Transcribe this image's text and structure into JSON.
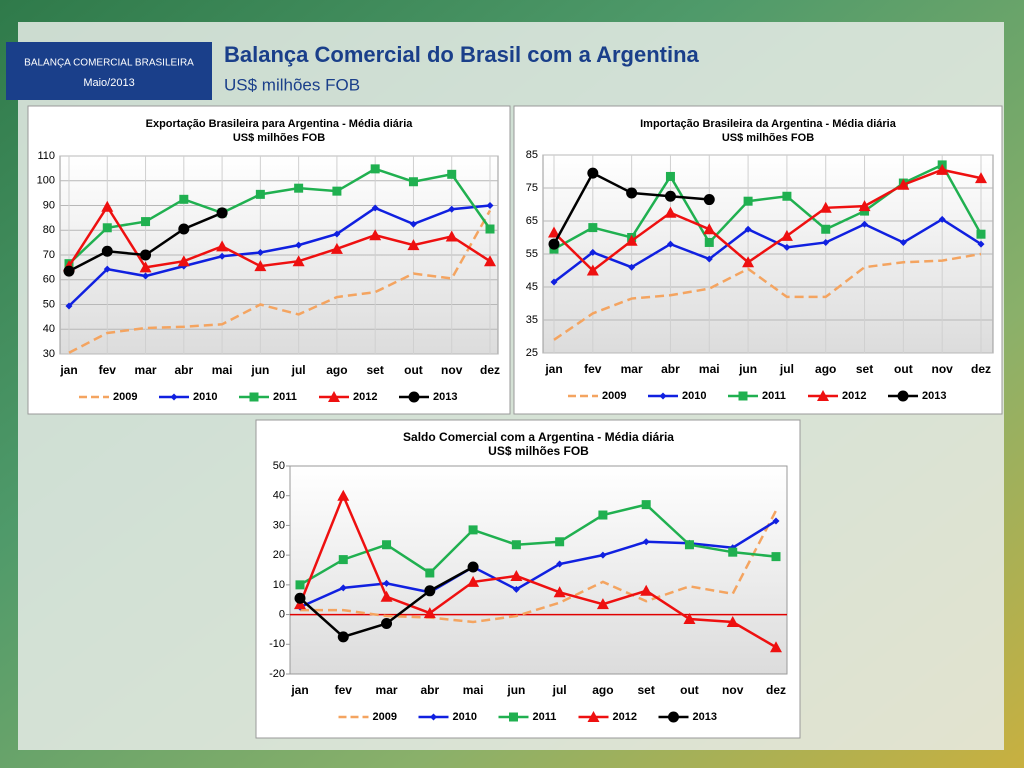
{
  "header": {
    "badge": "BALANÇA COMERCIAL BRASILEIRA",
    "date": "Maio/2013",
    "title": "Balança Comercial do Brasil com a Argentina",
    "subtitle": "US$ milhões FOB"
  },
  "chart_data": [
    {
      "type": "line",
      "title": "Exportação Brasileira para Argentina - Média diária",
      "subtitle": "US$ milhões FOB",
      "categories": [
        "jan",
        "fev",
        "mar",
        "abr",
        "mai",
        "jun",
        "jul",
        "ago",
        "set",
        "out",
        "nov",
        "dez"
      ],
      "ylim": [
        30,
        110
      ],
      "yticks": [
        30,
        40,
        50,
        60,
        70,
        80,
        90,
        100,
        110
      ],
      "grid": true,
      "legend": "bottom",
      "series": [
        {
          "name": "2009",
          "color": "#f4a460",
          "marker": "none",
          "dashed": true,
          "values": [
            30.5,
            38.5,
            40.5,
            41,
            42,
            50,
            46,
            53,
            55,
            62.5,
            60.5,
            88
          ]
        },
        {
          "name": "2010",
          "color": "#1020e0",
          "marker": "diamond",
          "values": [
            49.4,
            64.3,
            61.5,
            65.5,
            69.5,
            71,
            74,
            78.5,
            89,
            82.5,
            88.5,
            90
          ]
        },
        {
          "name": "2011",
          "color": "#20b050",
          "marker": "square",
          "values": [
            66.5,
            81,
            83.5,
            92.5,
            87,
            94.5,
            97,
            95.8,
            104.8,
            99.6,
            102.6,
            80.5
          ]
        },
        {
          "name": "2012",
          "color": "#ee1010",
          "marker": "triangle",
          "values": [
            65.5,
            89.5,
            65,
            67.5,
            73.5,
            65.5,
            67.5,
            72.5,
            78,
            74,
            77.5,
            67.5
          ]
        },
        {
          "name": "2013",
          "color": "#000000",
          "marker": "circle",
          "values": [
            63.5,
            71.5,
            70,
            80.5,
            87,
            null,
            null,
            null,
            null,
            null,
            null,
            null
          ]
        }
      ]
    },
    {
      "type": "line",
      "title": "Importação Brasileira da Argentina - Média diária",
      "subtitle": "US$ milhões FOB",
      "categories": [
        "jan",
        "fev",
        "mar",
        "abr",
        "mai",
        "jun",
        "jul",
        "ago",
        "set",
        "out",
        "nov",
        "dez"
      ],
      "ylim": [
        25,
        85
      ],
      "yticks": [
        25,
        35,
        45,
        55,
        65,
        75,
        85
      ],
      "grid": true,
      "legend": "bottom",
      "series": [
        {
          "name": "2009",
          "color": "#f4a460",
          "marker": "none",
          "dashed": true,
          "values": [
            29,
            37,
            41.5,
            42.5,
            44.5,
            50.5,
            42,
            42,
            51,
            52.5,
            53,
            55
          ]
        },
        {
          "name": "2010",
          "color": "#1020e0",
          "marker": "diamond",
          "values": [
            46.5,
            55.5,
            51,
            58,
            53.5,
            62.5,
            57,
            58.5,
            64,
            58.5,
            65.5,
            58
          ]
        },
        {
          "name": "2011",
          "color": "#20b050",
          "marker": "square",
          "values": [
            56.5,
            63,
            60,
            78.5,
            58.5,
            71,
            72.5,
            62.5,
            68,
            76.5,
            82,
            61
          ]
        },
        {
          "name": "2012",
          "color": "#ee1010",
          "marker": "triangle",
          "values": [
            61.5,
            50,
            59,
            67.5,
            62.5,
            52.5,
            60.5,
            69,
            69.5,
            76,
            80.5,
            78
          ]
        },
        {
          "name": "2013",
          "color": "#000000",
          "marker": "circle",
          "values": [
            58,
            79.5,
            73.5,
            72.5,
            71.5,
            null,
            null,
            null,
            null,
            null,
            null,
            null
          ]
        }
      ]
    },
    {
      "type": "line",
      "title": "Saldo Comercial com a Argentina - Média diária",
      "subtitle": "US$ milhões FOB",
      "categories": [
        "jan",
        "fev",
        "mar",
        "abr",
        "mai",
        "jun",
        "jul",
        "ago",
        "set",
        "out",
        "nov",
        "dez"
      ],
      "ylim": [
        -20,
        50
      ],
      "yticks": [
        -20,
        -10,
        0,
        10,
        20,
        30,
        40,
        50
      ],
      "grid": false,
      "legend": "bottom",
      "xaxis_color": "#e00000",
      "series": [
        {
          "name": "2009",
          "color": "#f4a460",
          "marker": "none",
          "dashed": true,
          "values": [
            1.5,
            1.5,
            -0.5,
            -1,
            -2.5,
            -0.5,
            4,
            11,
            4.5,
            9.5,
            7,
            35
          ]
        },
        {
          "name": "2010",
          "color": "#1020e0",
          "marker": "diamond",
          "values": [
            2.5,
            9,
            10.5,
            7.5,
            16,
            8.5,
            17,
            20,
            24.5,
            24,
            22.5,
            31.5
          ]
        },
        {
          "name": "2011",
          "color": "#20b050",
          "marker": "square",
          "values": [
            10,
            18.5,
            23.5,
            14,
            28.5,
            23.5,
            24.5,
            33.5,
            37,
            23.5,
            21,
            19.5
          ]
        },
        {
          "name": "2012",
          "color": "#ee1010",
          "marker": "triangle",
          "values": [
            3.5,
            40,
            6,
            0.5,
            11,
            13,
            7.5,
            3.5,
            8,
            -1.5,
            -2.5,
            -11
          ]
        },
        {
          "name": "2013",
          "color": "#000000",
          "marker": "circle",
          "values": [
            5.5,
            -7.5,
            -3,
            8,
            16,
            null,
            null,
            null,
            null,
            null,
            null,
            null
          ]
        }
      ]
    }
  ]
}
